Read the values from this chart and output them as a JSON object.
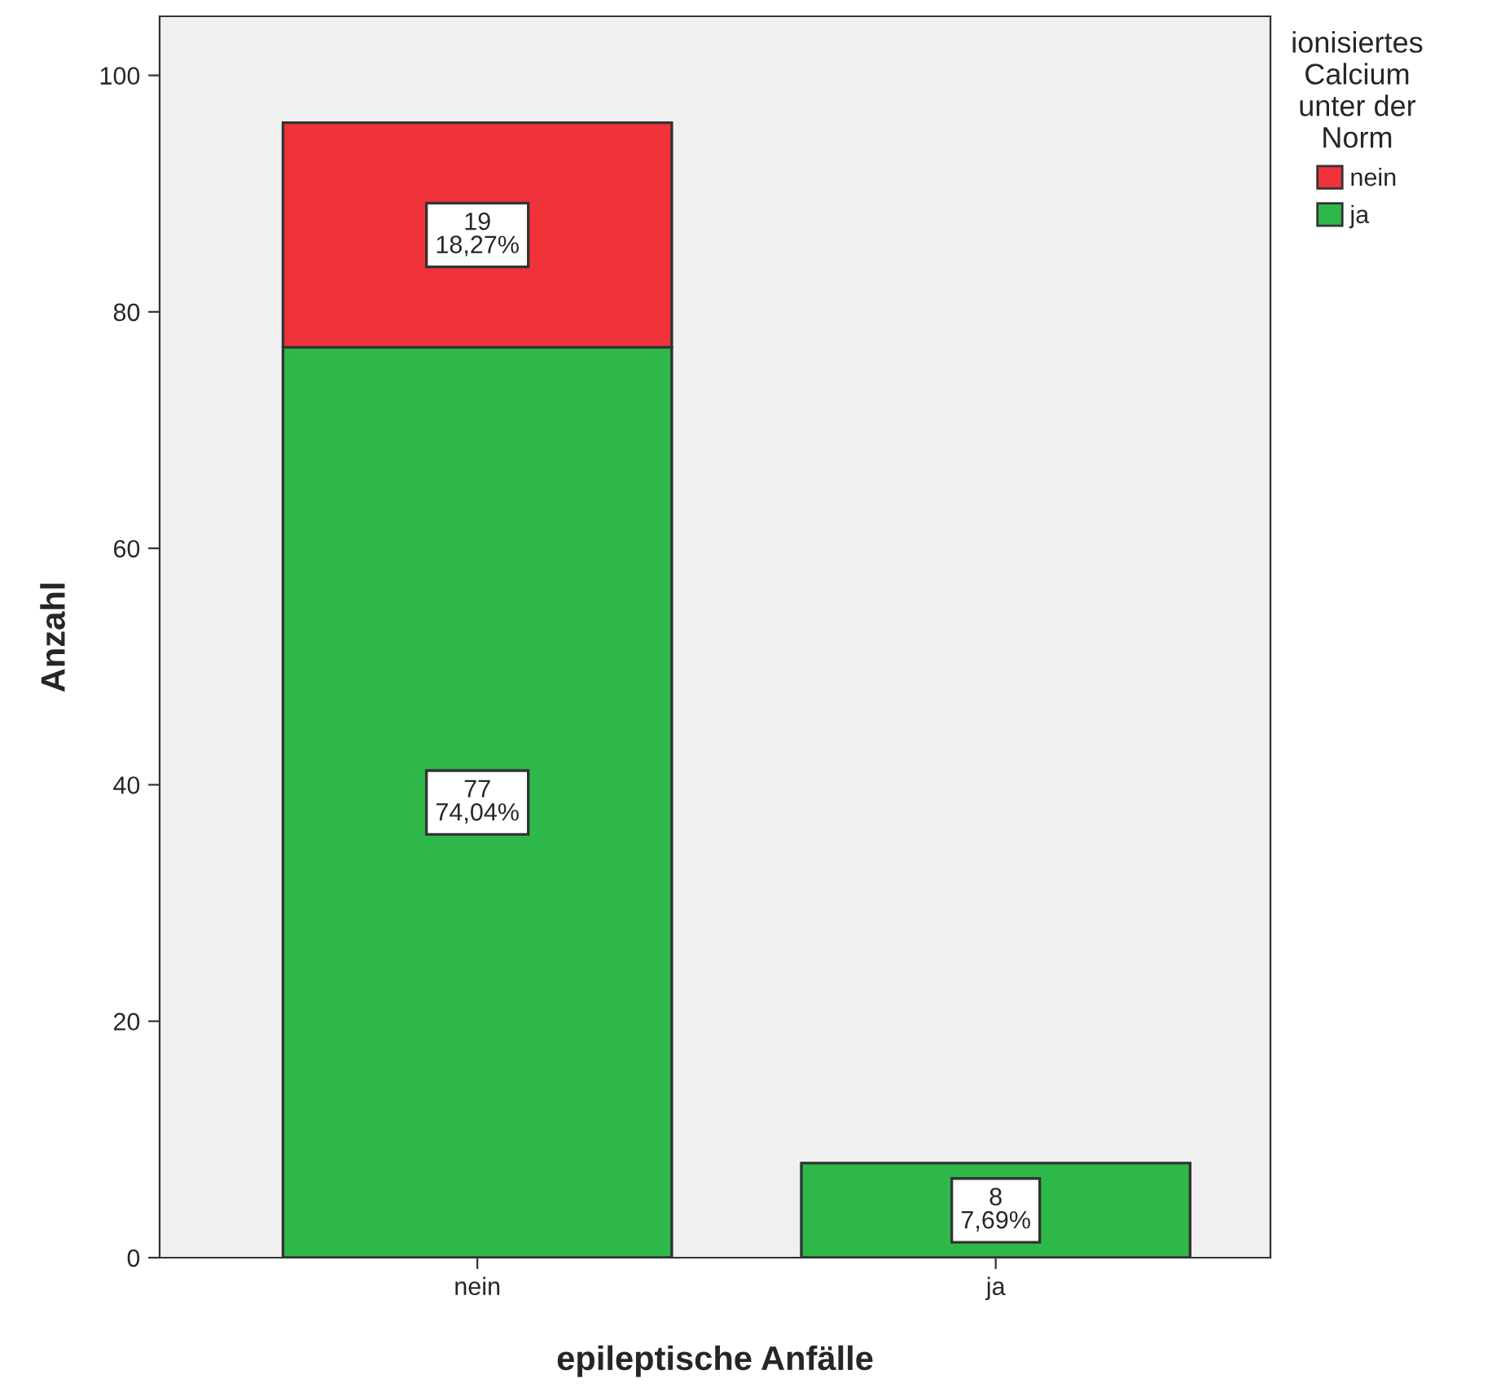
{
  "chart_data": {
    "type": "bar",
    "stacked": true,
    "xlabel": "epileptische Anfälle",
    "ylabel": "Anzahl",
    "legend_title": "ionisiertes\nCalcium\nunter der\nNorm",
    "categories": [
      "nein",
      "ja"
    ],
    "series": [
      {
        "name": "ja",
        "color": "#2eb84a",
        "values": [
          77,
          8
        ],
        "value_labels": [
          "77\n74,04%",
          "8\n7,69%"
        ]
      },
      {
        "name": "nein",
        "color": "#f0323a",
        "values": [
          19,
          null
        ],
        "value_labels": [
          "19\n18,27%",
          null
        ]
      }
    ],
    "ylim": [
      0,
      105
    ],
    "yticks": [
      0,
      20,
      40,
      60,
      80,
      100
    ],
    "grid": false,
    "legend": "top right"
  }
}
